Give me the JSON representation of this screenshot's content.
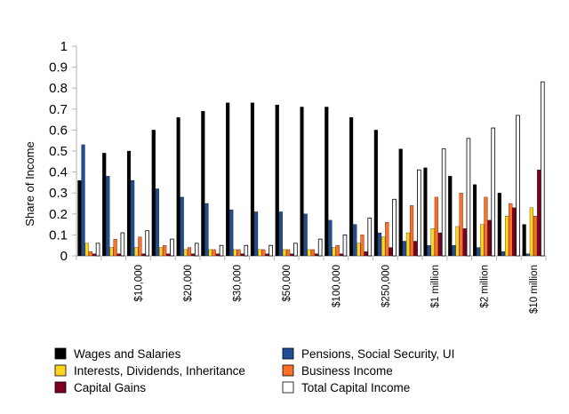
{
  "chart_data": {
    "type": "bar",
    "title": "",
    "xlabel": "",
    "ylabel": "Share of Income",
    "ylim": [
      0,
      1
    ],
    "yticks": [
      0,
      0.1,
      0.2,
      0.3,
      0.4,
      0.5,
      0.6,
      0.7,
      0.8,
      0.9,
      1
    ],
    "ytick_labels": [
      "0",
      "0.1",
      "0.2",
      "0.3",
      "0.4",
      "0.5",
      "0.6",
      "0.7",
      "0.8",
      "0.9",
      "1"
    ],
    "categories": [
      "",
      "",
      "$10,000",
      "",
      "$20,000",
      "",
      "$30,000",
      "",
      "$50,000",
      "",
      "$100,000",
      "",
      "$250,000",
      "",
      "$1 million",
      "",
      "$2 million",
      "",
      "$10 million"
    ],
    "grid": false,
    "legend_position": "bottom",
    "series": [
      {
        "name": "Wages and Salaries",
        "color": "#000000",
        "values": [
          0.36,
          0.49,
          0.5,
          0.6,
          0.66,
          0.69,
          0.73,
          0.73,
          0.72,
          0.71,
          0.71,
          0.66,
          0.6,
          0.51,
          0.42,
          0.38,
          0.34,
          0.3,
          0.15
        ]
      },
      {
        "name": "Pensions, Social Security, UI",
        "color": "#1f4e94",
        "values": [
          0.53,
          0.38,
          0.36,
          0.32,
          0.28,
          0.25,
          0.22,
          0.21,
          0.21,
          0.2,
          0.17,
          0.15,
          0.11,
          0.07,
          0.05,
          0.05,
          0.04,
          0.02,
          0.01
        ]
      },
      {
        "name": "Interests, Dividends, Inheritance",
        "color": "#ffd320",
        "values": [
          0.06,
          0.04,
          0.04,
          0.04,
          0.03,
          0.03,
          0.03,
          0.03,
          0.03,
          0.03,
          0.04,
          0.06,
          0.09,
          0.11,
          0.13,
          0.14,
          0.15,
          0.19,
          0.23
        ]
      },
      {
        "name": "Business Income",
        "color": "#ff6f26",
        "values": [
          0.02,
          0.08,
          0.09,
          0.05,
          0.04,
          0.03,
          0.03,
          0.03,
          0.03,
          0.03,
          0.05,
          0.1,
          0.16,
          0.24,
          0.28,
          0.3,
          0.28,
          0.25,
          0.19
        ]
      },
      {
        "name": "Capital Gains",
        "color": "#7e0021",
        "values": [
          0.01,
          0.01,
          0.01,
          0.01,
          0.01,
          0.01,
          0.01,
          0.01,
          0.01,
          0.01,
          0.01,
          0.02,
          0.04,
          0.07,
          0.11,
          0.13,
          0.17,
          0.23,
          0.41
        ]
      },
      {
        "name": "Total Capital Income",
        "color": "#ffffff",
        "values": [
          0.06,
          0.11,
          0.12,
          0.08,
          0.06,
          0.05,
          0.05,
          0.05,
          0.06,
          0.08,
          0.1,
          0.18,
          0.27,
          0.41,
          0.51,
          0.56,
          0.61,
          0.67,
          0.83
        ]
      }
    ]
  }
}
